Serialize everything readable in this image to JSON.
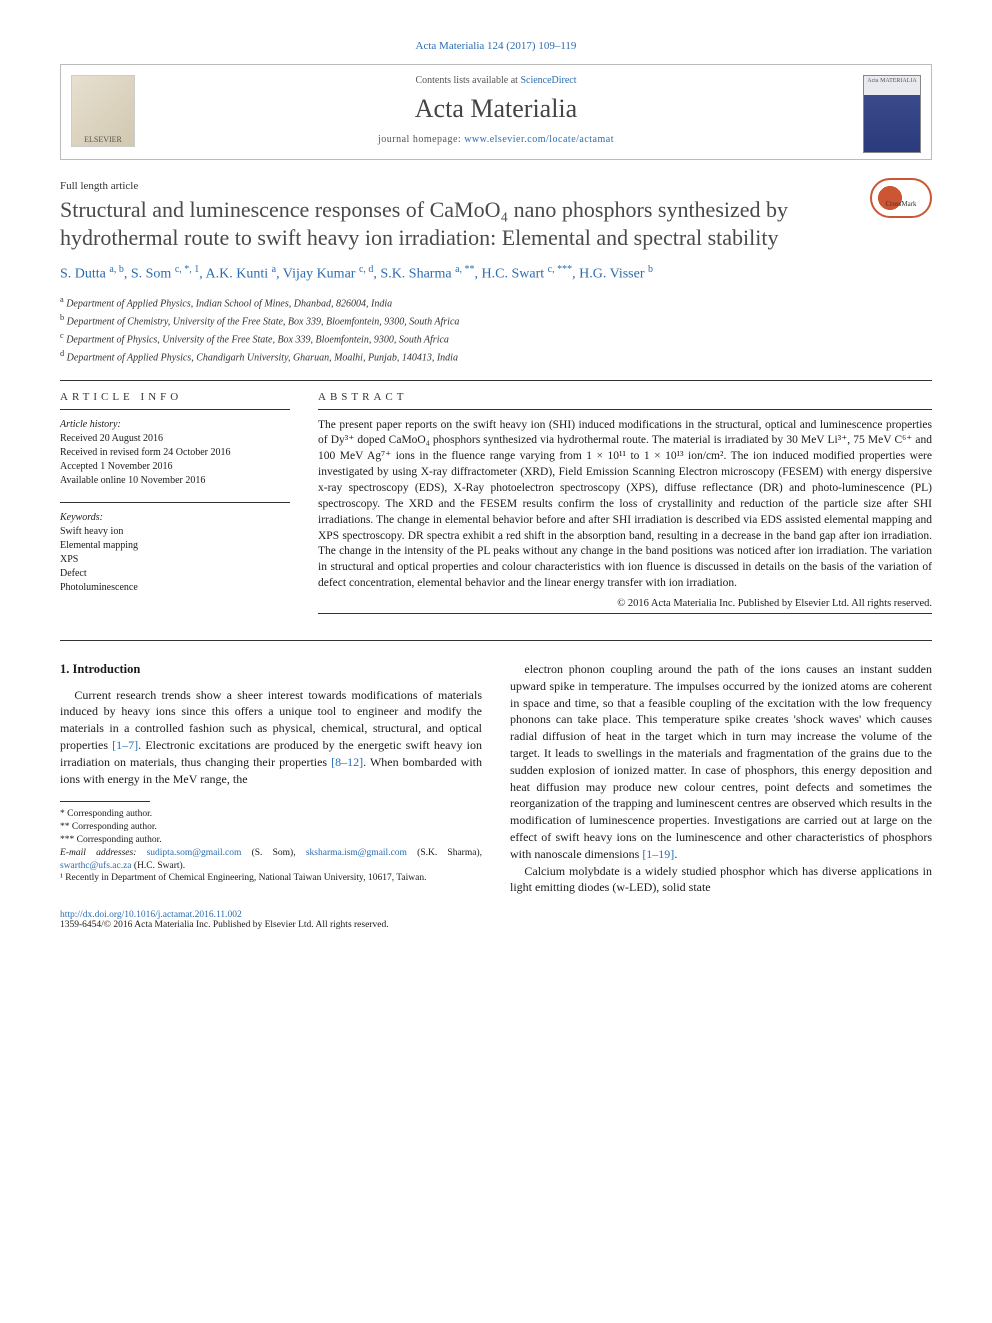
{
  "citation": "Acta Materialia 124 (2017) 109–119",
  "header": {
    "contents_prefix": "Contents lists available at ",
    "contents_link": "ScienceDirect",
    "journal": "Acta Materialia",
    "homepage_prefix": "journal homepage: ",
    "homepage_url": "www.elsevier.com/locate/actamat",
    "elsevier": "ELSEVIER",
    "cover_text": "Acta MATERIALIA"
  },
  "article_type": "Full length article",
  "title": "Structural and luminescence responses of CaMoO₄ nano phosphors synthesized by hydrothermal route to swift heavy ion irradiation: Elemental and spectral stability",
  "crossmark": "CrossMark",
  "authors_html": "S. Dutta <sup>a, b</sup>, S. Som <sup>c, *, 1</sup>, A.K. Kunti <sup>a</sup>, Vijay Kumar <sup>c, d</sup>, S.K. Sharma <sup>a, **</sup>, H.C. Swart <sup>c, ***</sup>, H.G. Visser <sup>b</sup>",
  "affiliations": [
    {
      "sup": "a",
      "text": "Department of Applied Physics, Indian School of Mines, Dhanbad, 826004, India"
    },
    {
      "sup": "b",
      "text": "Department of Chemistry, University of the Free State, Box 339, Bloemfontein, 9300, South Africa"
    },
    {
      "sup": "c",
      "text": "Department of Physics, University of the Free State, Box 339, Bloemfontein, 9300, South Africa"
    },
    {
      "sup": "d",
      "text": "Department of Applied Physics, Chandigarh University, Gharuan, Moalhi, Punjab, 140413, India"
    }
  ],
  "info_heading": "ARTICLE INFO",
  "abstract_heading": "ABSTRACT",
  "history": {
    "label": "Article history:",
    "received": "Received 20 August 2016",
    "revised": "Received in revised form 24 October 2016",
    "accepted": "Accepted 1 November 2016",
    "online": "Available online 10 November 2016"
  },
  "keywords": {
    "label": "Keywords:",
    "items": [
      "Swift heavy ion",
      "Elemental mapping",
      "XPS",
      "Defect",
      "Photoluminescence"
    ]
  },
  "abstract": "The present paper reports on the swift heavy ion (SHI) induced modifications in the structural, optical and luminescence properties of Dy³⁺ doped CaMoO₄ phosphors synthesized via hydrothermal route. The material is irradiated by 30 MeV Li³⁺, 75 MeV C⁶⁺ and 100 MeV Ag⁷⁺ ions in the fluence range varying from 1 × 10¹¹ to 1 × 10¹³ ion/cm². The ion induced modified properties were investigated by using X-ray diffractometer (XRD), Field Emission Scanning Electron microscopy (FESEM) with energy dispersive x-ray spectroscopy (EDS), X-Ray photoelectron spectroscopy (XPS), diffuse reflectance (DR) and photo-luminescence (PL) spectroscopy. The XRD and the FESEM results confirm the loss of crystallinity and reduction of the particle size after SHI irradiations. The change in elemental behavior before and after SHI irradiation is described via EDS assisted elemental mapping and XPS spectroscopy. DR spectra exhibit a red shift in the absorption band, resulting in a decrease in the band gap after ion irradiation. The change in the intensity of the PL peaks without any change in the band positions was noticed after ion irradiation. The variation in structural and optical properties and colour characteristics with ion fluence is discussed in details on the basis of the variation of defect concentration, elemental behavior and the linear energy transfer with ion irradiation.",
  "abstract_copyright": "© 2016 Acta Materialia Inc. Published by Elsevier Ltd. All rights reserved.",
  "section1_heading": "1. Introduction",
  "intro_left": "Current research trends show a sheer interest towards modifications of materials induced by heavy ions since this offers a unique tool to engineer and modify the materials in a controlled fashion such as physical, chemical, structural, and optical properties [1–7]. Electronic excitations are produced by the energetic swift heavy ion irradiation on materials, thus changing their properties [8–12]. When bombarded with ions with energy in the MeV range, the",
  "intro_right_p1": "electron phonon coupling around the path of the ions causes an instant sudden upward spike in temperature. The impulses occurred by the ionized atoms are coherent in space and time, so that a feasible coupling of the excitation with the low frequency phonons can take place. This temperature spike creates 'shock waves' which causes radial diffusion of heat in the target which in turn may increase the volume of the target. It leads to swellings in the materials and fragmentation of the grains due to the sudden explosion of ionized matter. In case of phosphors, this energy deposition and heat diffusion may produce new colour centres, point defects and sometimes the reorganization of the trapping and luminescent centres are observed which results in the modification of luminescence properties. Investigations are carried out at large on the effect of swift heavy ions on the luminescence and other characteristics of phosphors with nanoscale dimensions [1–19].",
  "intro_right_p2": "Calcium molybdate is a widely studied phosphor which has diverse applications in light emitting diodes (w-LED), solid state",
  "footnotes": {
    "corr1": "* Corresponding author.",
    "corr2": "** Corresponding author.",
    "corr3": "*** Corresponding author.",
    "emails_label": "E-mail addresses: ",
    "email1": "sudipta.som@gmail.com",
    "email1_who": " (S. Som), ",
    "email2": "sksharma.ism@gmail.com",
    "email2_who": " (S.K. Sharma), ",
    "email3": "swarthc@ufs.ac.za",
    "email3_who": " (H.C. Swart).",
    "note1": "¹ Recently in Department of Chemical Engineering, National Taiwan University, 10617, Taiwan."
  },
  "doi": "http://dx.doi.org/10.1016/j.actamat.2016.11.002",
  "issn_copy": "1359-6454/© 2016 Acta Materialia Inc. Published by Elsevier Ltd. All rights reserved.",
  "refs": {
    "r1": "[1–7]",
    "r2": "[8–12]",
    "r3": "[1–19]"
  },
  "colors": {
    "link": "#2b6cb0",
    "text": "#1a1a1a",
    "title_gray": "#4a4a4a"
  }
}
